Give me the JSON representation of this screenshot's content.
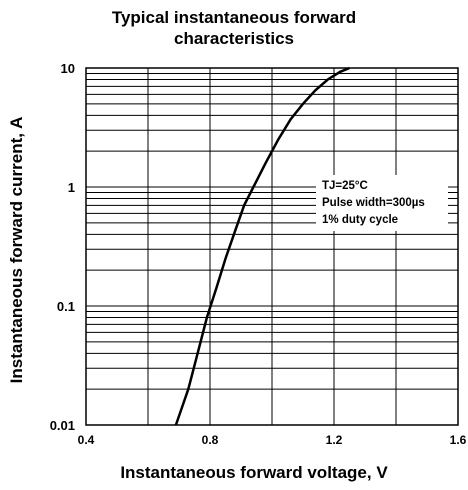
{
  "chart_data": {
    "type": "line",
    "title_line1": "Typical instantaneous forward",
    "title_line2": "characteristics",
    "xlabel": "Instantaneous forward voltage, V",
    "ylabel": "Instantaneous forward current, A",
    "x_scale": "linear",
    "y_scale": "log",
    "xlim": [
      0.4,
      1.6
    ],
    "ylim": [
      0.01,
      10
    ],
    "x_ticks": [
      "0.4",
      "0.8",
      "1.2",
      "1.6"
    ],
    "y_ticks": [
      "0.01",
      "0.1",
      "1",
      "10"
    ],
    "grid": true,
    "series": [
      {
        "x": [
          0.69,
          0.73,
          0.76,
          0.79,
          0.82,
          0.85,
          0.88,
          0.91,
          0.94,
          0.98,
          1.02,
          1.06,
          1.1,
          1.14,
          1.18,
          1.22,
          1.25
        ],
        "y": [
          0.01,
          0.02,
          0.04,
          0.08,
          0.14,
          0.25,
          0.42,
          0.7,
          1.0,
          1.6,
          2.5,
          3.7,
          5.0,
          6.5,
          8.0,
          9.3,
          10.0
        ]
      }
    ],
    "annotations": [
      "TJ=25°C",
      "Pulse width=300µs",
      "1% duty cycle"
    ]
  }
}
